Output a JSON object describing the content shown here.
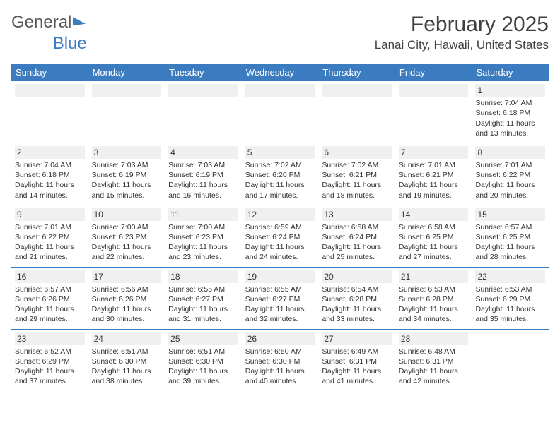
{
  "brand": {
    "part1": "General",
    "part2": "Blue"
  },
  "title": "February 2025",
  "location": "Lanai City, Hawaii, United States",
  "colors": {
    "header_bg": "#3b7bbf",
    "row_divider": "#3b7bbf",
    "alt_bg": "#f0f0f0",
    "text": "#333333",
    "background": "#ffffff"
  },
  "weekdays": [
    "Sunday",
    "Monday",
    "Tuesday",
    "Wednesday",
    "Thursday",
    "Friday",
    "Saturday"
  ],
  "weeks": [
    [
      {
        "n": "",
        "sr": "",
        "ss": "",
        "dl": ""
      },
      {
        "n": "",
        "sr": "",
        "ss": "",
        "dl": ""
      },
      {
        "n": "",
        "sr": "",
        "ss": "",
        "dl": ""
      },
      {
        "n": "",
        "sr": "",
        "ss": "",
        "dl": ""
      },
      {
        "n": "",
        "sr": "",
        "ss": "",
        "dl": ""
      },
      {
        "n": "",
        "sr": "",
        "ss": "",
        "dl": ""
      },
      {
        "n": "1",
        "sr": "Sunrise: 7:04 AM",
        "ss": "Sunset: 6:18 PM",
        "dl": "Daylight: 11 hours and 13 minutes."
      }
    ],
    [
      {
        "n": "2",
        "sr": "Sunrise: 7:04 AM",
        "ss": "Sunset: 6:18 PM",
        "dl": "Daylight: 11 hours and 14 minutes."
      },
      {
        "n": "3",
        "sr": "Sunrise: 7:03 AM",
        "ss": "Sunset: 6:19 PM",
        "dl": "Daylight: 11 hours and 15 minutes."
      },
      {
        "n": "4",
        "sr": "Sunrise: 7:03 AM",
        "ss": "Sunset: 6:19 PM",
        "dl": "Daylight: 11 hours and 16 minutes."
      },
      {
        "n": "5",
        "sr": "Sunrise: 7:02 AM",
        "ss": "Sunset: 6:20 PM",
        "dl": "Daylight: 11 hours and 17 minutes."
      },
      {
        "n": "6",
        "sr": "Sunrise: 7:02 AM",
        "ss": "Sunset: 6:21 PM",
        "dl": "Daylight: 11 hours and 18 minutes."
      },
      {
        "n": "7",
        "sr": "Sunrise: 7:01 AM",
        "ss": "Sunset: 6:21 PM",
        "dl": "Daylight: 11 hours and 19 minutes."
      },
      {
        "n": "8",
        "sr": "Sunrise: 7:01 AM",
        "ss": "Sunset: 6:22 PM",
        "dl": "Daylight: 11 hours and 20 minutes."
      }
    ],
    [
      {
        "n": "9",
        "sr": "Sunrise: 7:01 AM",
        "ss": "Sunset: 6:22 PM",
        "dl": "Daylight: 11 hours and 21 minutes."
      },
      {
        "n": "10",
        "sr": "Sunrise: 7:00 AM",
        "ss": "Sunset: 6:23 PM",
        "dl": "Daylight: 11 hours and 22 minutes."
      },
      {
        "n": "11",
        "sr": "Sunrise: 7:00 AM",
        "ss": "Sunset: 6:23 PM",
        "dl": "Daylight: 11 hours and 23 minutes."
      },
      {
        "n": "12",
        "sr": "Sunrise: 6:59 AM",
        "ss": "Sunset: 6:24 PM",
        "dl": "Daylight: 11 hours and 24 minutes."
      },
      {
        "n": "13",
        "sr": "Sunrise: 6:58 AM",
        "ss": "Sunset: 6:24 PM",
        "dl": "Daylight: 11 hours and 25 minutes."
      },
      {
        "n": "14",
        "sr": "Sunrise: 6:58 AM",
        "ss": "Sunset: 6:25 PM",
        "dl": "Daylight: 11 hours and 27 minutes."
      },
      {
        "n": "15",
        "sr": "Sunrise: 6:57 AM",
        "ss": "Sunset: 6:25 PM",
        "dl": "Daylight: 11 hours and 28 minutes."
      }
    ],
    [
      {
        "n": "16",
        "sr": "Sunrise: 6:57 AM",
        "ss": "Sunset: 6:26 PM",
        "dl": "Daylight: 11 hours and 29 minutes."
      },
      {
        "n": "17",
        "sr": "Sunrise: 6:56 AM",
        "ss": "Sunset: 6:26 PM",
        "dl": "Daylight: 11 hours and 30 minutes."
      },
      {
        "n": "18",
        "sr": "Sunrise: 6:55 AM",
        "ss": "Sunset: 6:27 PM",
        "dl": "Daylight: 11 hours and 31 minutes."
      },
      {
        "n": "19",
        "sr": "Sunrise: 6:55 AM",
        "ss": "Sunset: 6:27 PM",
        "dl": "Daylight: 11 hours and 32 minutes."
      },
      {
        "n": "20",
        "sr": "Sunrise: 6:54 AM",
        "ss": "Sunset: 6:28 PM",
        "dl": "Daylight: 11 hours and 33 minutes."
      },
      {
        "n": "21",
        "sr": "Sunrise: 6:53 AM",
        "ss": "Sunset: 6:28 PM",
        "dl": "Daylight: 11 hours and 34 minutes."
      },
      {
        "n": "22",
        "sr": "Sunrise: 6:53 AM",
        "ss": "Sunset: 6:29 PM",
        "dl": "Daylight: 11 hours and 35 minutes."
      }
    ],
    [
      {
        "n": "23",
        "sr": "Sunrise: 6:52 AM",
        "ss": "Sunset: 6:29 PM",
        "dl": "Daylight: 11 hours and 37 minutes."
      },
      {
        "n": "24",
        "sr": "Sunrise: 6:51 AM",
        "ss": "Sunset: 6:30 PM",
        "dl": "Daylight: 11 hours and 38 minutes."
      },
      {
        "n": "25",
        "sr": "Sunrise: 6:51 AM",
        "ss": "Sunset: 6:30 PM",
        "dl": "Daylight: 11 hours and 39 minutes."
      },
      {
        "n": "26",
        "sr": "Sunrise: 6:50 AM",
        "ss": "Sunset: 6:30 PM",
        "dl": "Daylight: 11 hours and 40 minutes."
      },
      {
        "n": "27",
        "sr": "Sunrise: 6:49 AM",
        "ss": "Sunset: 6:31 PM",
        "dl": "Daylight: 11 hours and 41 minutes."
      },
      {
        "n": "28",
        "sr": "Sunrise: 6:48 AM",
        "ss": "Sunset: 6:31 PM",
        "dl": "Daylight: 11 hours and 42 minutes."
      },
      {
        "n": "",
        "sr": "",
        "ss": "",
        "dl": ""
      }
    ]
  ]
}
